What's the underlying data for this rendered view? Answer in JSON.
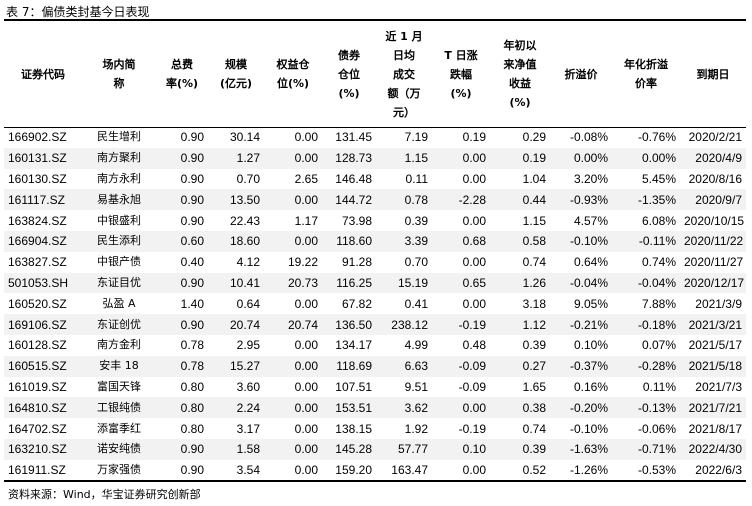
{
  "title": "表 7：偏债类封基今日表现",
  "columns": [
    [
      "证券代码"
    ],
    [
      "场内简",
      "称"
    ],
    [
      "总费",
      "率(%)"
    ],
    [
      "规模",
      "(亿元)"
    ],
    [
      "权益仓",
      "位(%)"
    ],
    [
      "债券",
      "仓位",
      "(%)"
    ],
    [
      "近 1 月",
      "日均",
      "成交",
      "额（万",
      "元）"
    ],
    [
      "T 日涨",
      "跌幅",
      "(%)"
    ],
    [
      "年初以",
      "来净值",
      "收益",
      "(%)"
    ],
    [
      "折溢价"
    ],
    [
      "年化折溢",
      "价率"
    ],
    [
      "到期日"
    ]
  ],
  "rows": [
    [
      "166902.SZ",
      "民生增利",
      "0.90",
      "30.14",
      "0.00",
      "131.45",
      "7.19",
      "0.19",
      "0.29",
      "-0.08%",
      "-0.76%",
      "2020/2/21"
    ],
    [
      "160131.SZ",
      "南方聚利",
      "0.90",
      "1.27",
      "0.00",
      "128.73",
      "1.15",
      "0.00",
      "0.19",
      "0.00%",
      "0.00%",
      "2020/4/9"
    ],
    [
      "160130.SZ",
      "南方永利",
      "0.90",
      "0.70",
      "2.65",
      "146.48",
      "0.11",
      "0.00",
      "1.04",
      "3.20%",
      "5.45%",
      "2020/8/16"
    ],
    [
      "161117.SZ",
      "易基永旭",
      "0.90",
      "13.50",
      "0.00",
      "144.72",
      "0.78",
      "-2.28",
      "0.44",
      "-0.93%",
      "-1.35%",
      "2020/9/7"
    ],
    [
      "163824.SZ",
      "中银盛利",
      "0.90",
      "22.43",
      "1.17",
      "73.98",
      "0.39",
      "0.00",
      "1.15",
      "4.57%",
      "6.08%",
      "2020/10/15"
    ],
    [
      "166904.SZ",
      "民生添利",
      "0.60",
      "18.60",
      "0.00",
      "118.60",
      "3.39",
      "0.68",
      "0.58",
      "-0.10%",
      "-0.11%",
      "2020/11/22"
    ],
    [
      "163827.SZ",
      "中银产债",
      "0.40",
      "4.12",
      "19.22",
      "91.28",
      "0.70",
      "0.00",
      "0.74",
      "0.64%",
      "0.74%",
      "2020/11/27"
    ],
    [
      "501053.SH",
      "东证目优",
      "0.90",
      "10.41",
      "20.73",
      "116.25",
      "15.19",
      "0.65",
      "1.26",
      "-0.04%",
      "-0.04%",
      "2020/12/17"
    ],
    [
      "160520.SZ",
      "弘盈 A",
      "1.40",
      "0.64",
      "0.00",
      "67.82",
      "0.41",
      "0.00",
      "3.18",
      "9.05%",
      "7.88%",
      "2021/3/9"
    ],
    [
      "169106.SZ",
      "东证创优",
      "0.90",
      "20.74",
      "20.74",
      "136.50",
      "238.12",
      "-0.19",
      "1.12",
      "-0.21%",
      "-0.18%",
      "2021/3/21"
    ],
    [
      "160128.SZ",
      "南方金利",
      "0.78",
      "2.95",
      "0.00",
      "134.17",
      "4.99",
      "0.48",
      "0.39",
      "0.10%",
      "0.07%",
      "2021/5/17"
    ],
    [
      "160515.SZ",
      "安丰 18",
      "0.78",
      "15.27",
      "0.00",
      "118.69",
      "6.63",
      "-0.09",
      "0.27",
      "-0.37%",
      "-0.28%",
      "2021/5/18"
    ],
    [
      "161019.SZ",
      "富国天锋",
      "0.80",
      "3.60",
      "0.00",
      "107.51",
      "9.51",
      "-0.09",
      "1.65",
      "0.16%",
      "0.11%",
      "2021/7/3"
    ],
    [
      "164810.SZ",
      "工银纯债",
      "0.80",
      "2.24",
      "0.00",
      "153.51",
      "3.62",
      "0.00",
      "0.38",
      "-0.20%",
      "-0.13%",
      "2021/7/21"
    ],
    [
      "164702.SZ",
      "添富季红",
      "0.80",
      "3.17",
      "0.00",
      "138.15",
      "1.92",
      "-0.19",
      "0.74",
      "-0.10%",
      "-0.06%",
      "2021/8/17"
    ],
    [
      "163210.SZ",
      "诺安纯债",
      "0.90",
      "1.58",
      "0.00",
      "145.28",
      "57.77",
      "0.10",
      "0.39",
      "-1.63%",
      "-0.71%",
      "2022/4/30"
    ],
    [
      "161911.SZ",
      "万家强债",
      "0.90",
      "3.54",
      "0.00",
      "159.20",
      "163.47",
      "0.00",
      "0.52",
      "-1.26%",
      "-0.53%",
      "2022/6/3"
    ]
  ],
  "source": "资料来源：Wind，华宝证券研究创新部"
}
